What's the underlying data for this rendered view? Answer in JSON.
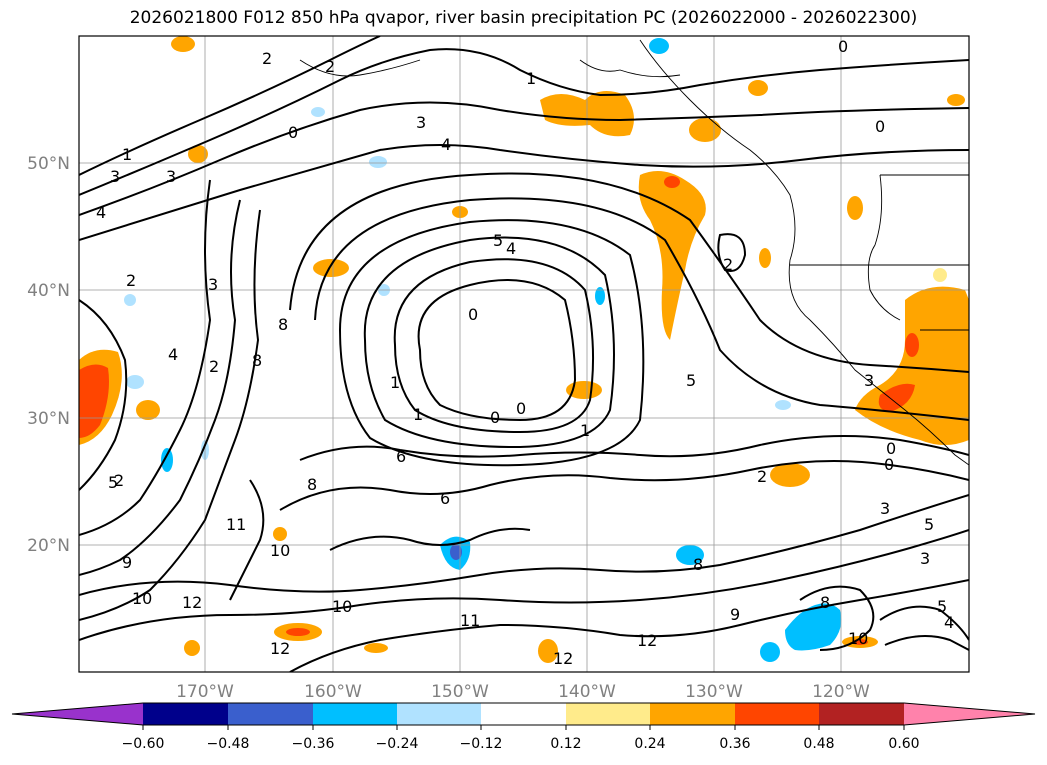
{
  "title": "2026021800 F012 850 hPa qvapor, river basin precipitation PC (2026022000 - 2026022300)",
  "lat_labels": [
    "50°N",
    "40°N",
    "30°N",
    "20°N"
  ],
  "lon_labels": [
    "170°W",
    "160°W",
    "150°W",
    "140°W",
    "130°W",
    "120°W"
  ],
  "colorbar": {
    "tick_labels": [
      "−0.60",
      "−0.48",
      "−0.36",
      "−0.24",
      "−0.12",
      "0.12",
      "0.24",
      "0.36",
      "0.48",
      "0.60"
    ],
    "colors": [
      "#9932cc",
      "#00008b",
      "#3a5fcd",
      "#00bfff",
      "#b0e2ff",
      "#ffffff",
      "#ffeb8b",
      "#ffa500",
      "#ff4500",
      "#b22222",
      "#ff82ab"
    ]
  },
  "contour_labels": [
    "2",
    "2",
    "1",
    "3",
    "3",
    "0",
    "4",
    "3",
    "4",
    "2",
    "3",
    "5",
    "4",
    "2",
    "8",
    "2",
    "8",
    "1",
    "0",
    "0",
    "1",
    "5",
    "0",
    "3",
    "4",
    "5",
    "6",
    "6",
    "1",
    "8",
    "11",
    "10",
    "9",
    "10",
    "12",
    "10",
    "11",
    "12",
    "12",
    "8",
    "9",
    "8",
    "10",
    "12",
    "2",
    "0",
    "0",
    "3",
    "5",
    "3",
    "5",
    "4",
    "0",
    "0",
    "1",
    "2"
  ]
}
